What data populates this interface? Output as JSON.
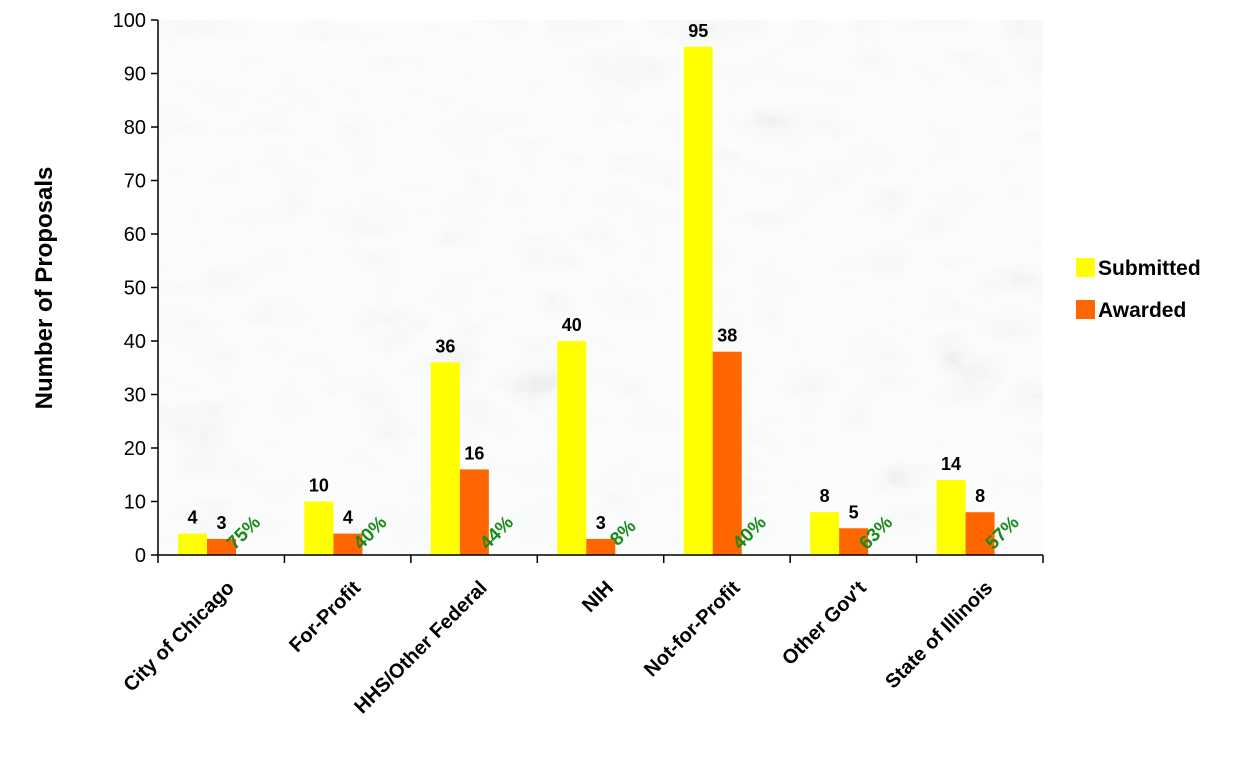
{
  "chart_data": {
    "type": "bar",
    "ylabel": "Number of Proposals",
    "xlabel": "",
    "ylim": [
      0,
      100
    ],
    "yticks": [
      0,
      10,
      20,
      30,
      40,
      50,
      60,
      70,
      80,
      90,
      100
    ],
    "categories": [
      "City of Chicago",
      "For-Profit",
      "HHS/Other Federal",
      "NIH",
      "Not-for-Profit",
      "Other Gov't",
      "State of Illinois"
    ],
    "series": [
      {
        "name": "Submitted",
        "color": "#ffff00",
        "values": [
          4,
          10,
          36,
          40,
          95,
          8,
          14
        ]
      },
      {
        "name": "Awarded",
        "color": "#ff6600",
        "values": [
          3,
          4,
          16,
          3,
          38,
          5,
          8
        ]
      }
    ],
    "award_rates": [
      "75%",
      "40%",
      "44%",
      "8%",
      "40%",
      "63%",
      "57%"
    ],
    "award_rate_color": "#1a8a1a",
    "legend_position": "right",
    "grid": false,
    "background": "marble texture"
  }
}
